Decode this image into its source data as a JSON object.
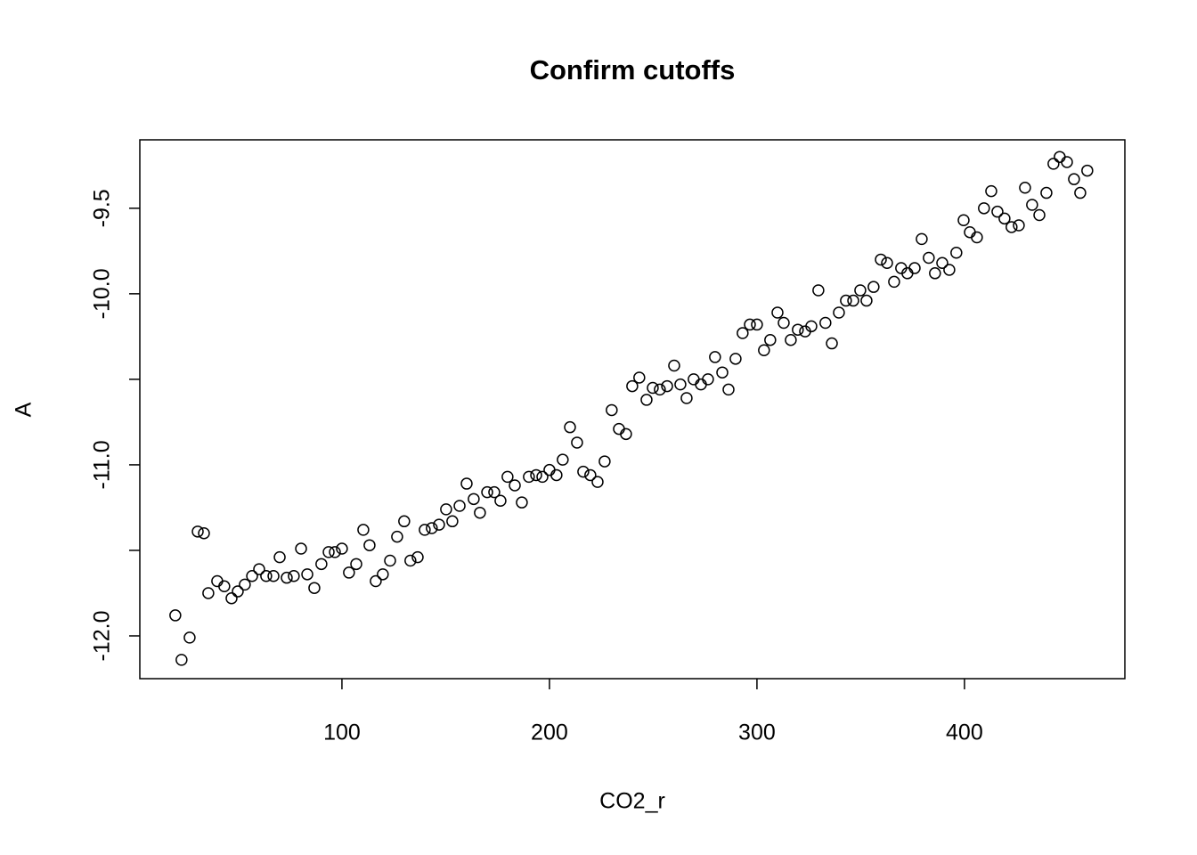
{
  "chart_data": {
    "type": "scatter",
    "title": "Confirm cutoffs",
    "x_label": "CO2_r",
    "y_label": "A",
    "xlim": [
      2.6,
      477.3
    ],
    "ylim": [
      -12.25,
      -9.1
    ],
    "xticks": [
      100,
      200,
      300,
      400
    ],
    "yticks": [
      {
        "value": -12,
        "label": "-12.0"
      },
      {
        "value": -11,
        "label": "-11.0"
      },
      {
        "value": -10,
        "label": "-10.0"
      },
      -9.5
    ],
    "minor_yticks": [
      -11.5,
      -10.5
    ],
    "color": "#000000",
    "x": [
      19.7,
      22.7,
      26.6,
      30.5,
      33.5,
      35.6,
      39.9,
      43.3,
      46.8,
      49.8,
      53.2,
      56.7,
      60.1,
      63.5,
      67.0,
      70.0,
      73.4,
      76.8,
      80.3,
      83.3,
      86.7,
      90.1,
      93.6,
      96.6,
      100.0,
      103.4,
      106.9,
      110.3,
      113.3,
      116.3,
      119.7,
      123.2,
      126.6,
      130.0,
      133.0,
      136.5,
      139.9,
      143.3,
      146.8,
      150.2,
      153.2,
      156.7,
      160.1,
      163.5,
      166.5,
      170.0,
      173.4,
      176.4,
      179.8,
      183.3,
      186.7,
      190.1,
      193.6,
      196.6,
      200.0,
      203.4,
      206.4,
      209.9,
      213.3,
      216.3,
      219.7,
      223.2,
      226.6,
      230.0,
      233.5,
      236.9,
      239.9,
      243.3,
      246.8,
      249.8,
      253.2,
      256.7,
      260.1,
      263.1,
      266.1,
      269.5,
      273.0,
      276.4,
      279.8,
      283.3,
      286.3,
      289.7,
      293.1,
      296.6,
      300.0,
      303.4,
      306.4,
      309.9,
      312.9,
      316.3,
      319.7,
      323.2,
      326.2,
      329.6,
      333.0,
      336.1,
      339.5,
      342.9,
      346.4,
      349.8,
      352.8,
      356.2,
      359.7,
      362.7,
      366.1,
      369.5,
      372.5,
      376.0,
      379.4,
      382.8,
      385.8,
      389.3,
      392.7,
      396.1,
      399.6,
      402.6,
      406.0,
      409.4,
      412.9,
      415.9,
      419.3,
      422.7,
      426.2,
      429.2,
      432.6,
      436.1,
      439.5,
      442.9,
      445.9,
      449.4,
      452.8,
      455.8,
      459.2
    ],
    "y": [
      -11.88,
      -12.14,
      -12.01,
      -11.39,
      -11.4,
      -11.75,
      -11.68,
      -11.71,
      -11.78,
      -11.74,
      -11.7,
      -11.65,
      -11.61,
      -11.65,
      -11.65,
      -11.54,
      -11.66,
      -11.65,
      -11.49,
      -11.64,
      -11.72,
      -11.58,
      -11.51,
      -11.51,
      -11.49,
      -11.63,
      -11.58,
      -11.38,
      -11.47,
      -11.68,
      -11.64,
      -11.56,
      -11.42,
      -11.33,
      -11.56,
      -11.54,
      -11.38,
      -11.37,
      -11.35,
      -11.26,
      -11.33,
      -11.24,
      -11.11,
      -11.2,
      -11.28,
      -11.16,
      -11.16,
      -11.21,
      -11.07,
      -11.12,
      -11.22,
      -11.07,
      -11.06,
      -11.07,
      -11.03,
      -11.06,
      -10.97,
      -10.78,
      -10.87,
      -11.04,
      -11.06,
      -11.1,
      -10.98,
      -10.68,
      -10.79,
      -10.82,
      -10.54,
      -10.49,
      -10.62,
      -10.55,
      -10.56,
      -10.54,
      -10.42,
      -10.53,
      -10.61,
      -10.5,
      -10.53,
      -10.5,
      -10.37,
      -10.46,
      -10.56,
      -10.38,
      -10.23,
      -10.18,
      -10.18,
      -10.33,
      -10.27,
      -10.11,
      -10.17,
      -10.27,
      -10.21,
      -10.22,
      -10.19,
      -9.98,
      -10.17,
      -10.29,
      -10.11,
      -10.04,
      -10.04,
      -9.98,
      -10.04,
      -9.96,
      -9.8,
      -9.82,
      -9.93,
      -9.85,
      -9.88,
      -9.85,
      -9.68,
      -9.79,
      -9.88,
      -9.82,
      -9.86,
      -9.76,
      -9.57,
      -9.64,
      -9.67,
      -9.5,
      -9.4,
      -9.52,
      -9.56,
      -9.61,
      -9.6,
      -9.38,
      -9.48,
      -9.54,
      -9.41,
      -9.24,
      -9.2,
      -9.23,
      -9.33,
      -9.41,
      -9.28
    ]
  }
}
